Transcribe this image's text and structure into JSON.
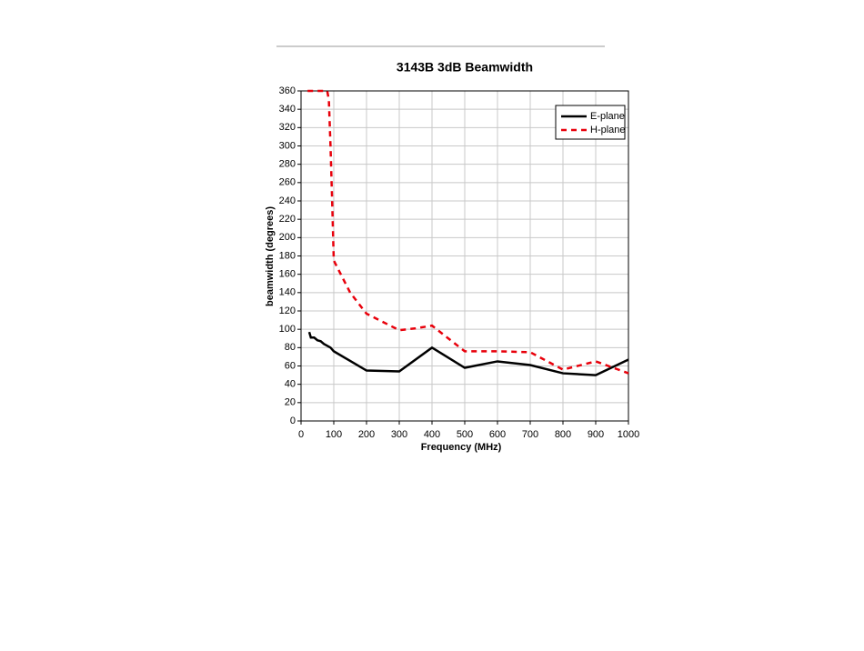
{
  "chart_data": {
    "type": "line",
    "title": "3143B 3dB Beamwidth",
    "x_label": "Frequency (MHz)",
    "y_label": "beamwidth (degrees)",
    "xlim": [
      0,
      1000
    ],
    "ylim": [
      0,
      360
    ],
    "xticks": [
      0,
      100,
      200,
      300,
      400,
      500,
      600,
      700,
      800,
      900,
      1000
    ],
    "yticks": [
      0,
      20,
      40,
      60,
      80,
      100,
      120,
      140,
      160,
      180,
      200,
      220,
      240,
      260,
      280,
      300,
      320,
      340,
      360
    ],
    "grid": true,
    "legend": "upper right",
    "series": [
      {
        "name": "E-plane",
        "color": "#000000",
        "dash": "solid",
        "x": [
          25,
          30,
          40,
          50,
          60,
          70,
          80,
          90,
          100,
          200,
          300,
          400,
          500,
          600,
          700,
          800,
          900,
          1000
        ],
        "values": [
          97,
          91,
          91,
          88,
          87,
          84,
          82,
          80,
          76,
          55,
          54,
          80,
          58,
          65,
          61,
          52,
          50,
          67
        ]
      },
      {
        "name": "H-plane",
        "color": "#e8000b",
        "dash": "dashed",
        "x": [
          20,
          80,
          85,
          90,
          95,
          100,
          150,
          200,
          250,
          300,
          350,
          400,
          450,
          500,
          600,
          700,
          800,
          900,
          1000
        ],
        "values": [
          360,
          360,
          350,
          300,
          240,
          175,
          140,
          117,
          108,
          99,
          101,
          104,
          90,
          76,
          76,
          75,
          56,
          65,
          52
        ]
      }
    ]
  }
}
